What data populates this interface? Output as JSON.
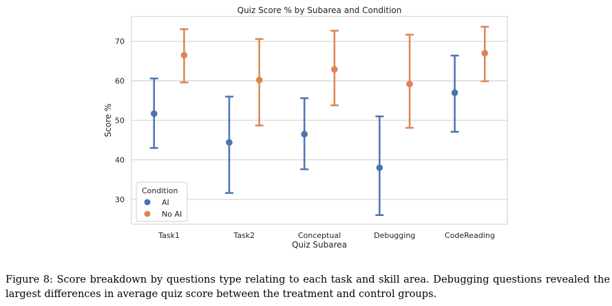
{
  "chart_data": {
    "type": "scatter",
    "title": "Quiz Score % by Subarea and Condition",
    "xlabel": "Quiz Subarea",
    "ylabel": "Score %",
    "categories": [
      "Task1",
      "Task2",
      "Conceptual",
      "Debugging",
      "CodeReading"
    ],
    "ylim": [
      23.7,
      76.3
    ],
    "yticks": [
      30,
      40,
      50,
      60,
      70
    ],
    "grid": "horizontal",
    "error_bars": true,
    "legend": {
      "title": "Condition",
      "placement": "lower-left"
    },
    "series": [
      {
        "name": "AI",
        "color": "#4c72b0",
        "values": [
          51.7,
          44.4,
          46.5,
          38.0,
          57.0
        ],
        "ci_low": [
          43.0,
          31.6,
          37.6,
          26.0,
          47.1
        ],
        "ci_high": [
          60.6,
          56.0,
          55.6,
          51.0,
          66.4
        ]
      },
      {
        "name": "No AI",
        "color": "#dd8452",
        "values": [
          66.5,
          60.2,
          62.9,
          59.2,
          67.0
        ],
        "ci_low": [
          59.6,
          48.7,
          53.8,
          48.1,
          59.9
        ],
        "ci_high": [
          73.1,
          70.6,
          72.7,
          71.7,
          73.7
        ]
      }
    ]
  },
  "caption": "Figure 8: Score breakdown by questions type relating to each task and skill area. Debugging questions revealed the largest differences in average quiz score between the treatment and control groups."
}
